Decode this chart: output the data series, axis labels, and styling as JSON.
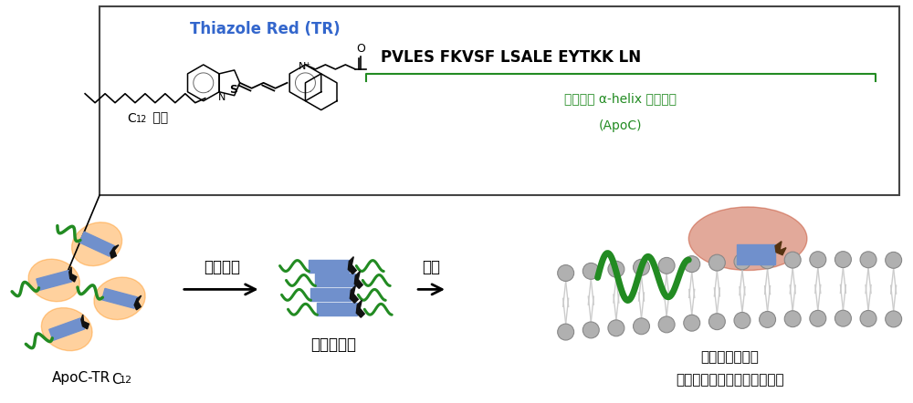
{
  "title_box": {
    "thiazole_red_label": "Thiazole Red (TR)",
    "thiazole_red_color": "#3366cc",
    "c12_label": "C",
    "c12_sub": "12",
    "c12_suffix": " 部位",
    "peptide_seq": "PVLES FKVSF LSALE EYTKK LN",
    "amphipathic_label": "両親媒性 α-helix ペプチド",
    "apoc_label": "(ApoC)",
    "green_color": "#228B22",
    "bracket_color": "#228B22"
  },
  "bottom": {
    "apoc_tr_label": "ApoC-TR",
    "apoc_tr_sub": "C12",
    "self_assembly_label": "自己会合",
    "aggregate_label": "凝集体形成",
    "dissociation_label": "解消",
    "membrane_label1": "高い曲率を持つ",
    "membrane_label2": "エクソソーム脂質膜への結合"
  },
  "colors": {
    "blue_rect": "#7090cc",
    "green_helix": "#228B22",
    "black_dye": "#111111",
    "orange_glow": "#ff8800",
    "gray_lipid": "#b0b0b0",
    "brown_glow": "#c04020",
    "background": "#ffffff",
    "box_border": "#444444",
    "arrow_color": "#222222"
  },
  "figsize": [
    10.0,
    4.42
  ],
  "dpi": 100
}
